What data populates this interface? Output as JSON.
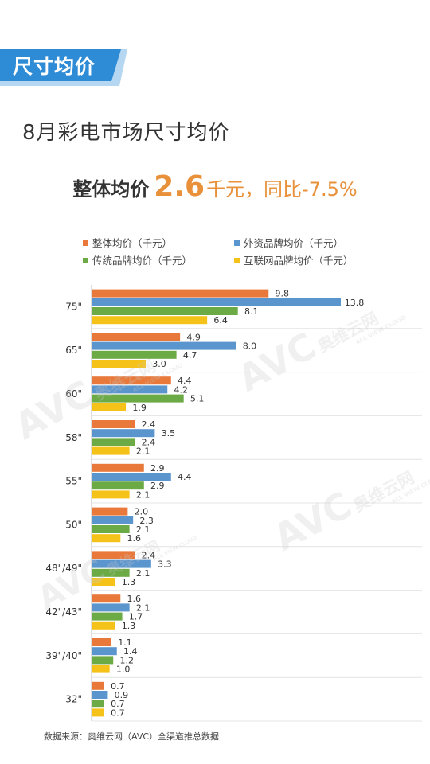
{
  "section_label": "尺寸均价",
  "title": "8月彩电市场尺寸均价",
  "headline": {
    "label": "整体均价",
    "value": "2.6",
    "rest": "千元，同比-7.5%"
  },
  "source": "数据来源：奥维云网（AVC）全渠道推总数据",
  "watermark": {
    "brand": "AVC",
    "cn": "奥维云网",
    "en": "ALL VIEW CLOUD"
  },
  "colors": {
    "accent_blue": "#2E8BD6",
    "overall": "#E8793A",
    "foreign": "#5B95CE",
    "traditional": "#6BAA45",
    "internet": "#F5C219"
  },
  "chart_data": {
    "type": "bar",
    "orientation": "horizontal",
    "categories": [
      "75\"",
      "65\"",
      "60\"",
      "58\"",
      "55\"",
      "50\"",
      "48\"/49\"",
      "42\"/43\"",
      "39\"/40\"",
      "32\""
    ],
    "series": [
      {
        "name": "整体均价（千元）",
        "color": "#E8793A",
        "values": [
          9.8,
          4.9,
          4.4,
          2.4,
          2.9,
          2.0,
          2.4,
          1.6,
          1.1,
          0.7
        ]
      },
      {
        "name": "外资品牌均价（千元）",
        "color": "#5B95CE",
        "values": [
          13.8,
          8.0,
          4.2,
          3.5,
          4.4,
          2.3,
          3.3,
          2.1,
          1.4,
          0.9
        ]
      },
      {
        "name": "传统品牌均价（千元）",
        "color": "#6BAA45",
        "values": [
          8.1,
          4.7,
          5.1,
          2.4,
          2.9,
          2.1,
          2.1,
          1.7,
          1.2,
          0.7
        ]
      },
      {
        "name": "互联网品牌均价（千元）",
        "color": "#F5C219",
        "values": [
          6.4,
          3.0,
          1.9,
          2.1,
          2.1,
          1.6,
          1.3,
          1.3,
          1.0,
          0.7
        ]
      }
    ],
    "value_labels": [
      [
        "9.8",
        "13.8",
        "8.1",
        "6.4"
      ],
      [
        "4.9",
        "8.0",
        "4.7",
        "3.0"
      ],
      [
        "4.4",
        "4.2",
        "5.1",
        "1.9"
      ],
      [
        "2.4",
        "3.5",
        "2.4",
        "2.1"
      ],
      [
        "2.9",
        "4.4",
        "2.9",
        "2.1"
      ],
      [
        "2.0",
        "2.3",
        "2.1",
        "1.6"
      ],
      [
        "2.4",
        "3.3",
        "2.1",
        "1.3"
      ],
      [
        "1.6",
        "2.1",
        "1.7",
        "1.3"
      ],
      [
        "1.1",
        "1.4",
        "1.2",
        "1.0"
      ],
      [
        "0.7",
        "0.9",
        "0.7",
        "0.7"
      ]
    ],
    "xlim": [
      0,
      13.8
    ],
    "grid": false,
    "legend_position": "top"
  }
}
